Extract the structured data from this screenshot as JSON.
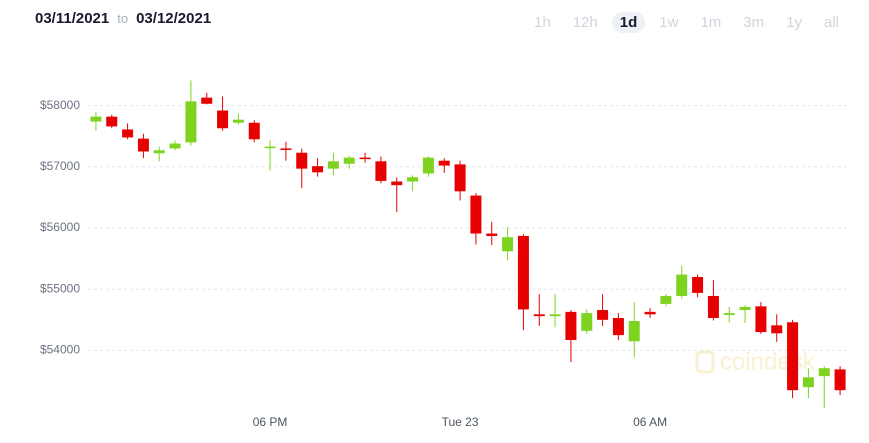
{
  "header": {
    "start_date": "03/11/2021",
    "separator": "to",
    "end_date": "03/12/2021",
    "ranges": [
      "1h",
      "12h",
      "1d",
      "1w",
      "1m",
      "3m",
      "1y",
      "all"
    ],
    "selected": "1d"
  },
  "chart_data": {
    "type": "candlestick",
    "watermark": "coindesk",
    "categories": [
      null,
      null,
      null,
      null,
      null,
      null,
      null,
      null,
      null,
      null,
      null,
      "06 PM",
      null,
      null,
      null,
      null,
      null,
      null,
      null,
      null,
      null,
      null,
      null,
      "Tue 23",
      null,
      null,
      null,
      null,
      null,
      null,
      null,
      null,
      null,
      null,
      null,
      "06 AM",
      null,
      null,
      null,
      null,
      null,
      null,
      null,
      null,
      null,
      null,
      null,
      null
    ],
    "open": [
      57740,
      57820,
      57610,
      57460,
      57220,
      57300,
      57400,
      58130,
      57920,
      57720,
      57720,
      57320,
      57300,
      57230,
      57010,
      56970,
      57050,
      57150,
      57090,
      56760,
      56760,
      56890,
      57100,
      57040,
      56530,
      55910,
      55620,
      55870,
      54590,
      54560,
      54630,
      54320,
      54660,
      54530,
      54150,
      54630,
      54760,
      54890,
      55200,
      54890,
      54580,
      54660,
      54720,
      54410,
      54460,
      53400,
      53580,
      53690
    ],
    "high": [
      57890,
      57850,
      57710,
      57540,
      57330,
      57430,
      58410,
      58210,
      58150,
      57870,
      57760,
      57430,
      57410,
      57300,
      57140,
      57230,
      57180,
      57230,
      57170,
      56830,
      56860,
      57170,
      57140,
      57100,
      56570,
      56100,
      56010,
      55900,
      54920,
      54920,
      54660,
      54670,
      54920,
      54610,
      54790,
      54690,
      54920,
      55380,
      55240,
      55150,
      54710,
      54740,
      54790,
      54590,
      54500,
      53710,
      53740,
      53740
    ],
    "low": [
      57590,
      57630,
      57450,
      57140,
      57090,
      57270,
      57350,
      58020,
      57590,
      57690,
      57400,
      56940,
      57100,
      56650,
      56840,
      56860,
      56970,
      57070,
      56730,
      56260,
      56600,
      56840,
      56900,
      56450,
      55730,
      55720,
      55470,
      54330,
      54400,
      54380,
      53810,
      54270,
      54400,
      54170,
      53890,
      54530,
      54720,
      54850,
      54870,
      54490,
      54460,
      54450,
      54270,
      54140,
      53220,
      53220,
      53060,
      53270
    ],
    "close": [
      57820,
      57660,
      57480,
      57250,
      57270,
      57380,
      58070,
      58030,
      57630,
      57770,
      57450,
      57330,
      57280,
      56970,
      56910,
      57090,
      57150,
      57130,
      56770,
      56700,
      56830,
      57150,
      57020,
      56600,
      55910,
      55870,
      55850,
      54670,
      54560,
      54590,
      54170,
      54610,
      54500,
      54250,
      54480,
      54590,
      54890,
      55240,
      54940,
      54530,
      54610,
      54710,
      54300,
      54280,
      53350,
      53560,
      53710,
      53350
    ],
    "up_color": "#7ed321",
    "down_color": "#e60000",
    "ylim": [
      52700,
      58500
    ],
    "yticks": [
      {
        "value": 54000,
        "label": "$54000"
      },
      {
        "value": 55000,
        "label": "$55000"
      },
      {
        "value": 56000,
        "label": "$56000"
      },
      {
        "value": 57000,
        "label": "$57000"
      },
      {
        "value": 58000,
        "label": "$58000"
      }
    ],
    "grid": true
  }
}
